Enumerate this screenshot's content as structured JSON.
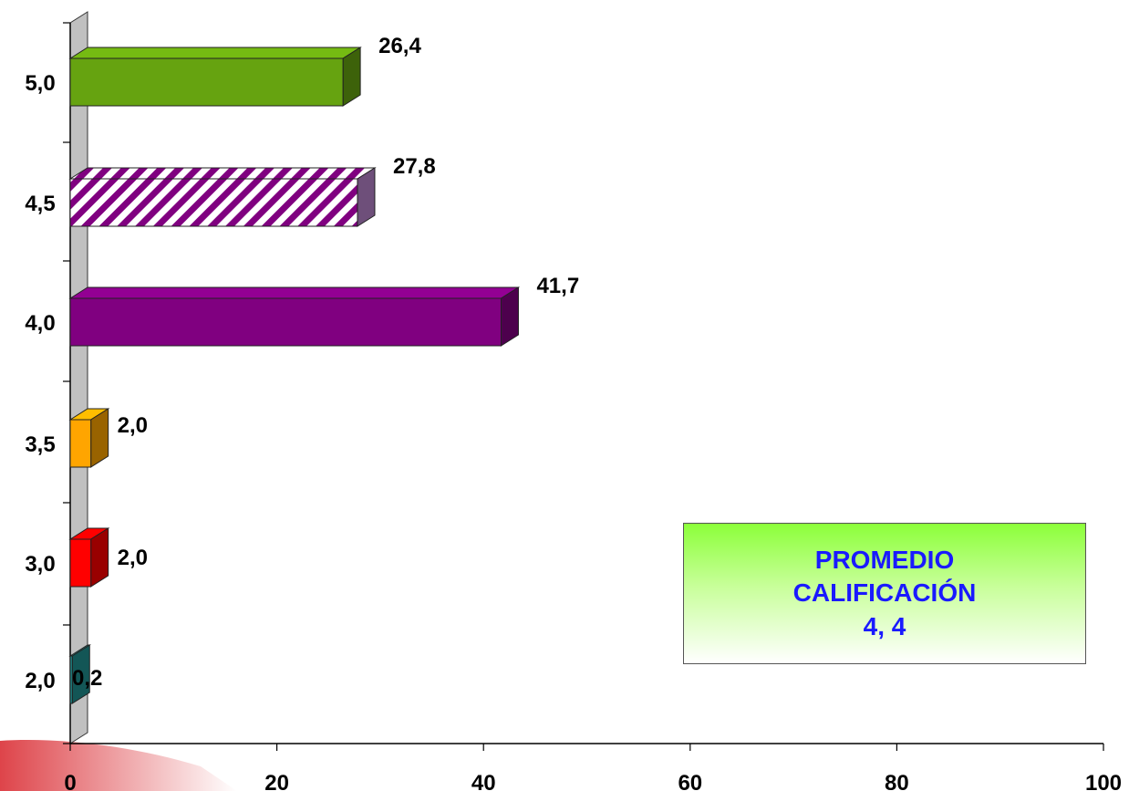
{
  "chart_data": {
    "type": "bar",
    "orientation": "horizontal",
    "categories": [
      "2,0",
      "3,0",
      "3,5",
      "4,0",
      "4,5",
      "5,0"
    ],
    "values": [
      0.2,
      2.0,
      2.0,
      41.7,
      27.8,
      26.4
    ],
    "data_labels": [
      "0,2",
      "2,0",
      "2,0",
      "41,7",
      "27,8",
      "26,4"
    ],
    "colors": [
      "#1f8f8f",
      "#ff0000",
      "#ffa500",
      "#800080",
      "#800080",
      "#66a310"
    ],
    "patterns": [
      "solid",
      "solid",
      "solid",
      "solid",
      "diagonal-stripes",
      "solid"
    ],
    "x_ticks": [
      "0",
      "20",
      "40",
      "60",
      "80",
      "100"
    ],
    "xlim": [
      0,
      100
    ],
    "grid": false,
    "legend": "none"
  },
  "callout": {
    "line1": "PROMEDIO",
    "line2": "CALIFICACIÓN",
    "line3": "4, 4"
  }
}
